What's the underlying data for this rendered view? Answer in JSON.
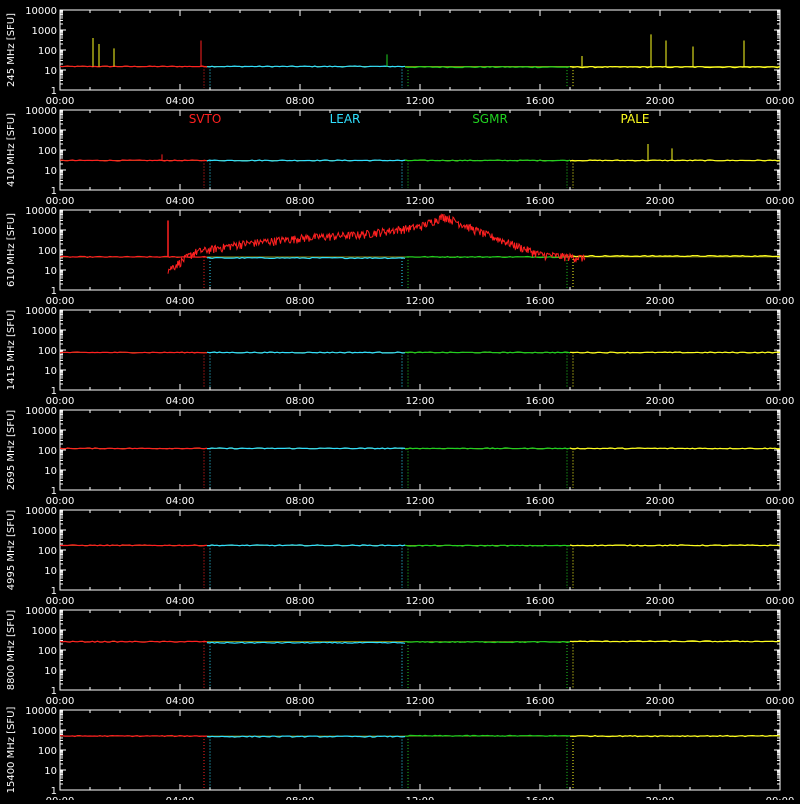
{
  "chart_data": {
    "type": "line",
    "x_range_hours": [
      0,
      24
    ],
    "y_scale": "log",
    "y_range": [
      1,
      10000
    ],
    "y_ticks": [
      "10000",
      "1000",
      "100",
      "10",
      "1"
    ],
    "x_tick_labels": [
      "00:00",
      "04:00",
      "08:00",
      "12:00",
      "16:00",
      "20:00",
      "00:00"
    ],
    "grid": false,
    "legend": [
      {
        "name": "SVTO",
        "color": "#ff2020"
      },
      {
        "name": "LEAR",
        "color": "#30e0ff"
      },
      {
        "name": "SGMR",
        "color": "#20d020"
      },
      {
        "name": "PALE",
        "color": "#ffff20"
      }
    ],
    "series_segments": {
      "SVTO": [
        0.0,
        4.9
      ],
      "LEAR": [
        4.9,
        11.5
      ],
      "SGMR": [
        11.5,
        17.0
      ],
      "PALE": [
        17.0,
        24.0
      ]
    },
    "panels": [
      {
        "ylabel": "245 MHz [SFU]",
        "baseline": 15,
        "values_by_station": {
          "SVTO": 15,
          "LEAR": 15,
          "SGMR": 14,
          "PALE": 14
        }
      },
      {
        "ylabel": "410 MHz [SFU]",
        "baseline": 30,
        "values_by_station": {
          "SVTO": 30,
          "LEAR": 30,
          "SGMR": 30,
          "PALE": 30
        }
      },
      {
        "ylabel": "610 MHz [SFU]",
        "baseline": 45,
        "values_by_station": {
          "SVTO": 45,
          "LEAR": 40,
          "SGMR": 45,
          "PALE": 50
        },
        "burst": {
          "station": "SVTO",
          "times_hours": [
            3.6,
            4.5,
            6.0,
            8.0,
            10.0,
            12.0,
            12.8,
            14.0,
            16.0,
            17.5
          ],
          "values": [
            10,
            80,
            200,
            400,
            600,
            1500,
            5000,
            800,
            60,
            40
          ]
        }
      },
      {
        "ylabel": "1415 MHz [SFU]",
        "baseline": 75,
        "values_by_station": {
          "SVTO": 75,
          "LEAR": 75,
          "SGMR": 75,
          "PALE": 75
        }
      },
      {
        "ylabel": "2695 MHz [SFU]",
        "baseline": 120,
        "values_by_station": {
          "SVTO": 120,
          "LEAR": 120,
          "SGMR": 120,
          "PALE": 120
        }
      },
      {
        "ylabel": "4995 MHz [SFU]",
        "baseline": 170,
        "values_by_station": {
          "SVTO": 170,
          "LEAR": 170,
          "SGMR": 165,
          "PALE": 170
        }
      },
      {
        "ylabel": "8800 MHz [SFU]",
        "baseline": 260,
        "values_by_station": {
          "SVTO": 260,
          "LEAR": 230,
          "SGMR": 250,
          "PALE": 270
        }
      },
      {
        "ylabel": "15400 MHz [SFU]",
        "baseline": 500,
        "values_by_station": {
          "SVTO": 500,
          "LEAR": 470,
          "SGMR": 510,
          "PALE": 500
        }
      }
    ]
  }
}
